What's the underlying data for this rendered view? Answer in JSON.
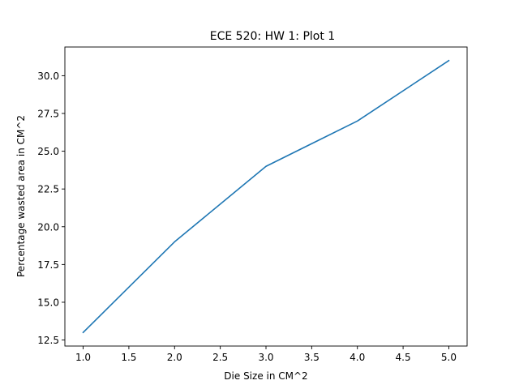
{
  "chart_data": {
    "type": "line",
    "title": "ECE 520: HW 1: Plot 1",
    "xlabel": "Die Size in CM^2",
    "ylabel": "Percentage wasted area in CM^2",
    "x": [
      1,
      2,
      3,
      4,
      5
    ],
    "series": [
      {
        "values": [
          13,
          19,
          24,
          27,
          31
        ],
        "color": "#1f77b4"
      }
    ],
    "xlim": [
      0.8,
      5.2
    ],
    "ylim": [
      12.1,
      31.9
    ],
    "xticks": [
      "1.0",
      "1.5",
      "2.0",
      "2.5",
      "3.0",
      "3.5",
      "4.0",
      "4.5",
      "5.0"
    ],
    "yticks": [
      "12.5",
      "15.0",
      "17.5",
      "20.0",
      "22.5",
      "25.0",
      "27.5",
      "30.0"
    ],
    "grid": false,
    "legend": "none"
  }
}
